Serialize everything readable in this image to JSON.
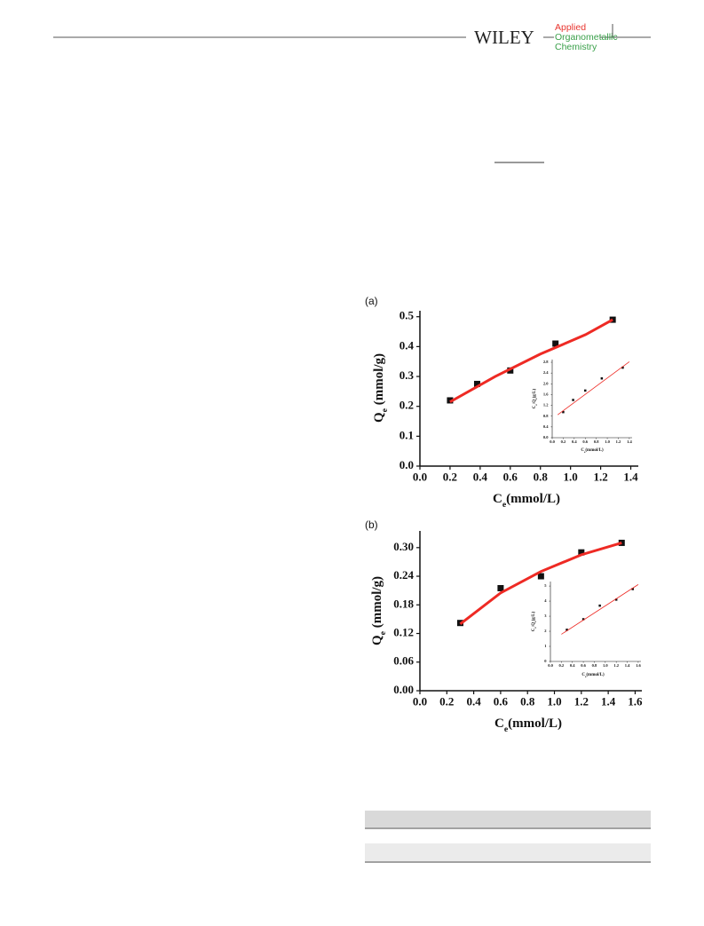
{
  "header": {
    "publisher": "WILEY",
    "journal": [
      "Applied",
      "Organometallic",
      "Chemistry"
    ]
  },
  "chart_data": [
    {
      "type": "scatter",
      "panel": "(a)",
      "xlabel": [
        "C",
        "e",
        "(mmol/L)"
      ],
      "ylabel": [
        "Q",
        "e",
        " (mmol/g)"
      ],
      "xlim": [
        0,
        1.45
      ],
      "ylim": [
        0,
        0.52
      ],
      "xticks": [
        {
          "value": 0,
          "label": "0.0"
        },
        0.2,
        0.4,
        0.6,
        0.8,
        {
          "value": 1,
          "label": "1.0"
        },
        1.2,
        1.4
      ],
      "yticks": [
        {
          "value": 0,
          "label": "0.0"
        },
        0.1,
        0.2,
        0.3,
        0.4,
        0.5
      ],
      "series": [
        {
          "color": "#111111",
          "x": [
            0.2,
            0.38,
            0.6,
            0.9,
            1.28
          ],
          "values": [
            0.22,
            0.275,
            0.32,
            0.41,
            0.49
          ]
        },
        {
          "type": "line",
          "color": "#ee2a24",
          "x": [
            0.2,
            0.5,
            0.8,
            1.1,
            1.28
          ],
          "values": [
            0.215,
            0.3,
            0.375,
            0.44,
            0.49
          ]
        }
      ]
    },
    {
      "type": "scatter",
      "xlabel": [
        "C",
        "e",
        "(mmol/L)"
      ],
      "ylabel": [
        "C",
        "e",
        "/Q",
        "e",
        "(g/L)"
      ],
      "xlim": [
        0,
        1.45
      ],
      "ylim": [
        0,
        2.9
      ],
      "xticks": [
        {
          "value": 0,
          "label": "0.0"
        },
        0.2,
        0.4,
        0.6,
        0.8,
        {
          "value": 1,
          "label": "1.0"
        },
        1.2,
        1.4
      ],
      "yticks": [
        {
          "value": 0,
          "label": "0.0"
        },
        0.4,
        0.8,
        1.2,
        1.6,
        {
          "value": 2,
          "label": "2.0"
        },
        2.4,
        2.8
      ],
      "series": [
        {
          "color": "#111111",
          "x": [
            0.2,
            0.38,
            0.6,
            0.9,
            1.28
          ],
          "values": [
            0.95,
            1.4,
            1.75,
            2.2,
            2.6
          ]
        },
        {
          "type": "line",
          "color": "#ee2a24",
          "x": [
            0.1,
            1.4
          ],
          "values": [
            0.85,
            2.82
          ]
        }
      ]
    },
    {
      "type": "scatter",
      "panel": "(b)",
      "xlabel": [
        "C",
        "e",
        "(mmol/L)"
      ],
      "ylabel": [
        "Q",
        "e",
        " (mmol/g)"
      ],
      "xlim": [
        0,
        1.65
      ],
      "ylim": [
        0,
        0.335
      ],
      "xticks": [
        {
          "value": 0,
          "label": "0.0"
        },
        0.2,
        0.4,
        0.6,
        0.8,
        {
          "value": 1,
          "label": "1.0"
        },
        1.2,
        1.4,
        1.6
      ],
      "yticks": [
        {
          "value": 0,
          "label": "0.00"
        },
        0.06,
        0.12,
        0.18,
        0.24,
        {
          "value": 0.3,
          "label": "0.30"
        }
      ],
      "series": [
        {
          "color": "#111111",
          "x": [
            0.3,
            0.6,
            0.9,
            1.2,
            1.5
          ],
          "values": [
            0.142,
            0.215,
            0.24,
            0.29,
            0.31
          ]
        },
        {
          "type": "line",
          "color": "#ee2a24",
          "x": [
            0.3,
            0.6,
            0.9,
            1.2,
            1.5
          ],
          "values": [
            0.14,
            0.205,
            0.25,
            0.285,
            0.31
          ]
        }
      ]
    },
    {
      "type": "scatter",
      "xlabel": [
        "C",
        "e",
        "(mmol/L)"
      ],
      "ylabel": [
        "C",
        "e",
        "/Q",
        "e",
        "(g/L)"
      ],
      "xlim": [
        0,
        1.65
      ],
      "ylim": [
        0,
        5.3
      ],
      "xticks": [
        {
          "value": 0,
          "label": "0.0"
        },
        0.2,
        0.4,
        0.6,
        0.8,
        {
          "value": 1,
          "label": "1.0"
        },
        1.2,
        1.4,
        1.6
      ],
      "yticks": [
        0,
        1,
        2,
        3,
        4,
        5
      ],
      "series": [
        {
          "color": "#111111",
          "x": [
            0.3,
            0.6,
            0.9,
            1.2,
            1.5
          ],
          "values": [
            2.1,
            2.8,
            3.7,
            4.1,
            4.8
          ]
        },
        {
          "type": "line",
          "color": "#ee2a24",
          "x": [
            0.2,
            1.6
          ],
          "values": [
            1.8,
            5.1
          ]
        }
      ]
    }
  ]
}
